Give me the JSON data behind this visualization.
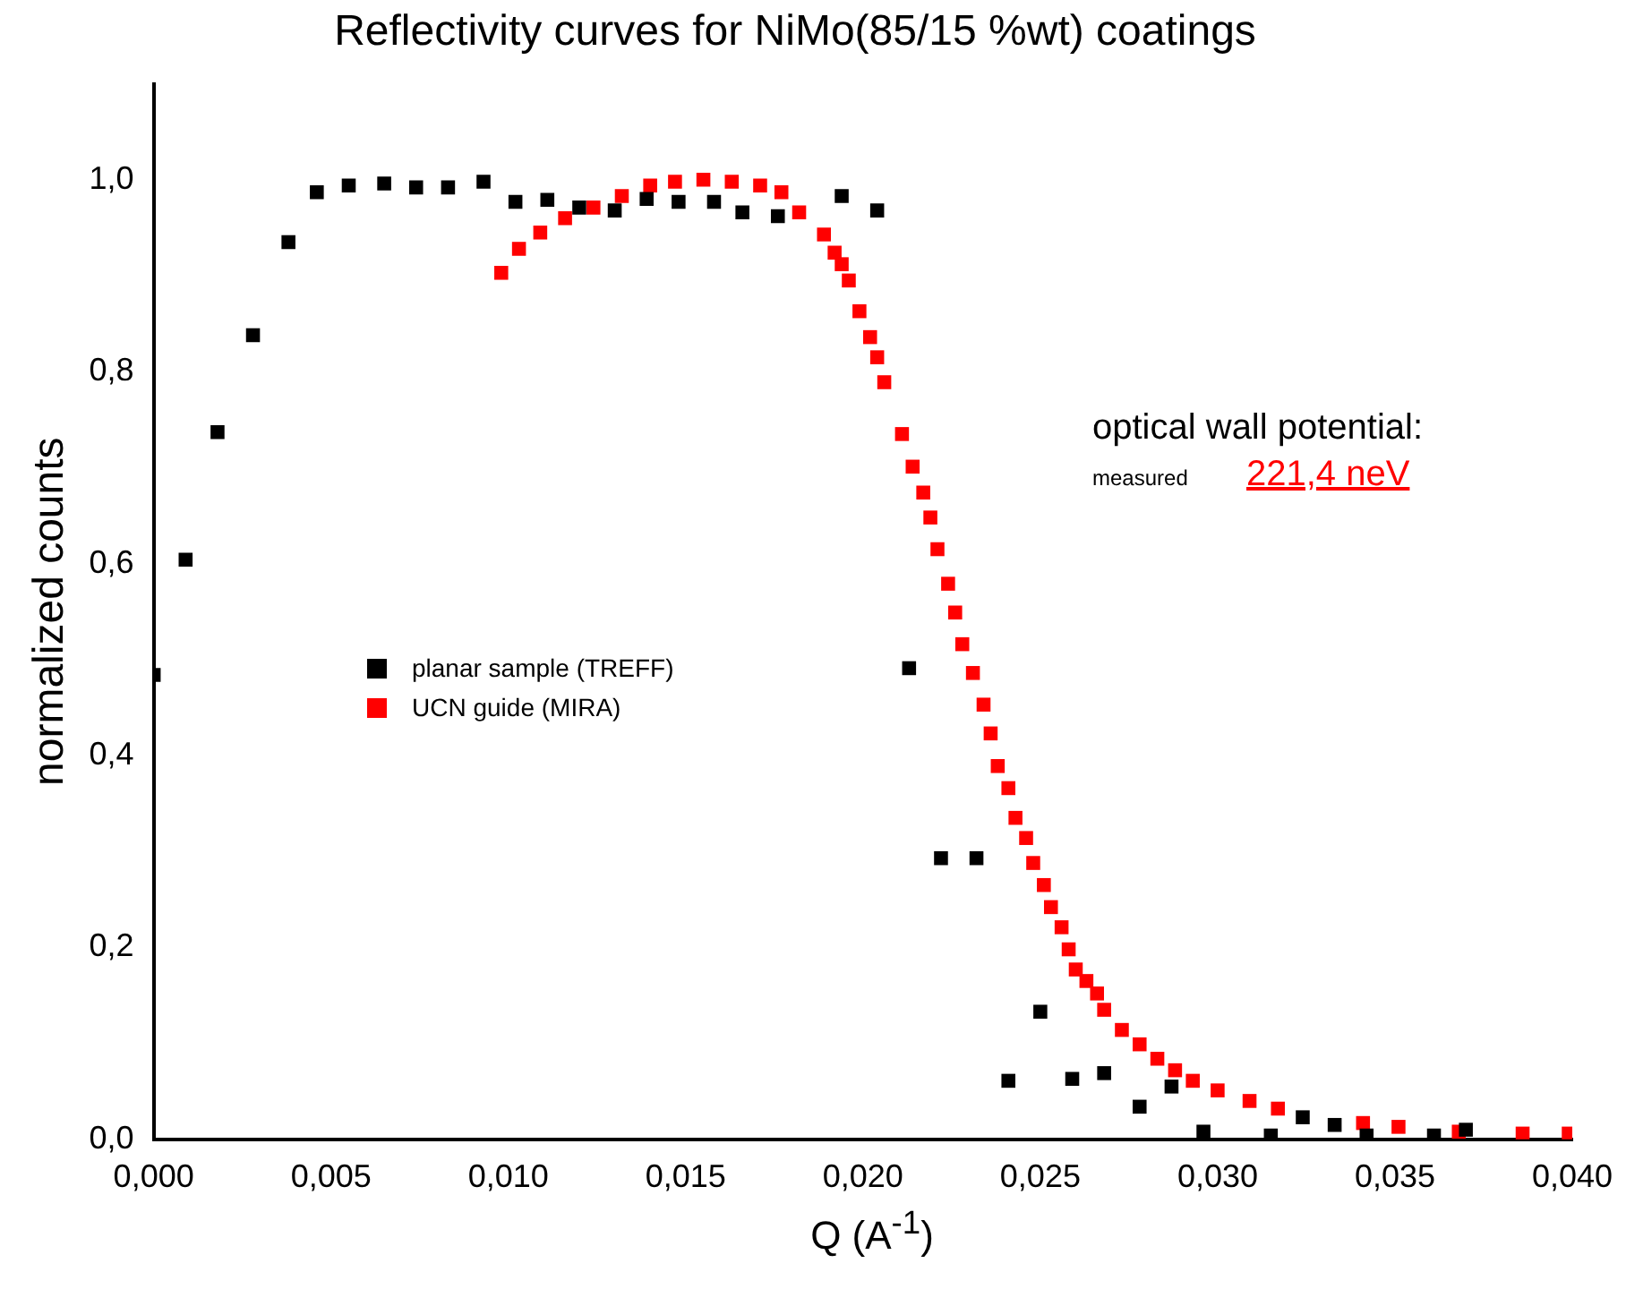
{
  "chart_data": {
    "type": "scatter",
    "title": "Reflectivity curves for NiMo(85/15 %wt) coatings",
    "xlabel": "Q (A$^{-1}$)",
    "ylabel": "normalized counts",
    "xlim": [
      0,
      0.04
    ],
    "ylim": [
      0,
      1.1
    ],
    "xticks": [
      {
        "value": 0,
        "label": "0,000"
      },
      {
        "value": 0.005,
        "label": "0,005"
      },
      {
        "value": 0.01,
        "label": "0,010"
      },
      {
        "value": 0.015,
        "label": "0,015"
      },
      {
        "value": 0.02,
        "label": "0,020"
      },
      {
        "value": 0.025,
        "label": "0,025"
      },
      {
        "value": 0.03,
        "label": "0,030"
      },
      {
        "value": 0.035,
        "label": "0,035"
      },
      {
        "value": 0.04,
        "label": "0,040"
      }
    ],
    "yticks": [
      {
        "value": 0,
        "label": "0,0"
      },
      {
        "value": 0.2,
        "label": "0,2"
      },
      {
        "value": 0.4,
        "label": "0,4"
      },
      {
        "value": 0.6,
        "label": "0,6"
      },
      {
        "value": 0.8,
        "label": "0,8"
      },
      {
        "value": 1,
        "label": "1,0"
      }
    ],
    "marker": "square",
    "grid": false,
    "legend": "left",
    "annotations": [
      "optical wall potential:",
      "measured",
      "221,4 neV"
    ],
    "series": [
      {
        "name": "planar sample (TREFF)",
        "color": "#000000",
        "x": [
          0,
          0.0009,
          0.0018,
          0.0028,
          0.0038,
          0.0046,
          0.0055,
          0.0065,
          0.0074,
          0.0083,
          0.0093,
          0.0102,
          0.0111,
          0.012,
          0.013,
          0.0139,
          0.0148,
          0.0158,
          0.0166,
          0.0176,
          0.0194,
          0.0204,
          0.0213,
          0.0222,
          0.0232,
          0.0241,
          0.025,
          0.0259,
          0.0268,
          0.0278,
          0.0287,
          0.0296,
          0.0315,
          0.0324,
          0.0333,
          0.0342,
          0.0361,
          0.037
        ],
        "values": [
          0.484,
          0.604,
          0.737,
          0.838,
          0.935,
          0.987,
          0.994,
          0.996,
          0.992,
          0.992,
          0.998,
          0.977,
          0.979,
          0.971,
          0.968,
          0.98,
          0.977,
          0.977,
          0.966,
          0.962,
          0.983,
          0.968,
          0.491,
          0.293,
          0.293,
          0.061,
          0.133,
          0.063,
          0.069,
          0.034,
          0.055,
          0.008,
          0.004,
          0.023,
          0.015,
          0.004,
          0.004,
          0.01
        ]
      },
      {
        "name": "UCN guide (MIRA)",
        "color": "#ff0000",
        "x": [
          0.0098,
          0.0103,
          0.0109,
          0.0116,
          0.0124,
          0.0132,
          0.014,
          0.0147,
          0.0155,
          0.0163,
          0.0171,
          0.0177,
          0.0182,
          0.0189,
          0.0192,
          0.0194,
          0.0196,
          0.0199,
          0.0202,
          0.0204,
          0.0206,
          0.0211,
          0.0214,
          0.0217,
          0.0219,
          0.0221,
          0.0224,
          0.0226,
          0.0228,
          0.0231,
          0.0234,
          0.0236,
          0.0238,
          0.0241,
          0.0243,
          0.0246,
          0.0248,
          0.0251,
          0.0253,
          0.0256,
          0.0258,
          0.026,
          0.0263,
          0.0266,
          0.0268,
          0.0273,
          0.0278,
          0.0283,
          0.0288,
          0.0293,
          0.03,
          0.0309,
          0.0317,
          0.0341,
          0.0351,
          0.0368,
          0.0386,
          0.0399
        ],
        "values": [
          0.903,
          0.928,
          0.945,
          0.96,
          0.971,
          0.983,
          0.994,
          0.998,
          1.0,
          0.998,
          0.994,
          0.987,
          0.966,
          0.943,
          0.924,
          0.912,
          0.895,
          0.863,
          0.836,
          0.815,
          0.789,
          0.735,
          0.701,
          0.674,
          0.648,
          0.615,
          0.579,
          0.549,
          0.516,
          0.486,
          0.453,
          0.423,
          0.389,
          0.366,
          0.335,
          0.314,
          0.288,
          0.265,
          0.242,
          0.221,
          0.198,
          0.177,
          0.165,
          0.152,
          0.135,
          0.114,
          0.099,
          0.084,
          0.072,
          0.061,
          0.051,
          0.04,
          0.032,
          0.017,
          0.013,
          0.008,
          0.006,
          0.006
        ]
      }
    ]
  }
}
